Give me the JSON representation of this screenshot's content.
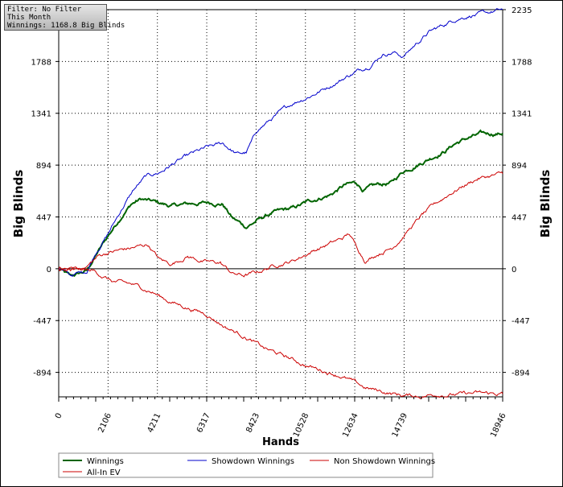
{
  "info": {
    "filter": "Filter: No Filter",
    "period": "This Month",
    "winnings": "Winnings: 1168.8 Big Blinds"
  },
  "chart_data": {
    "type": "line",
    "xlabel": "Hands",
    "ylabel": "Big Blinds",
    "xlim": [
      0,
      18946
    ],
    "ylim": [
      -1105,
      2235
    ],
    "x_ticks": [
      "0",
      "2106",
      "4211",
      "6317",
      "8423",
      "10528",
      "12634",
      "14739",
      "18946"
    ],
    "y_ticks": [
      "2235",
      "1788",
      "1341",
      "894",
      "447",
      "0",
      "-447",
      "-894"
    ],
    "grid": true,
    "legend_position": "bottom",
    "series": [
      {
        "name": "Winnings",
        "color": "#006400",
        "points": [
          [
            0,
            0
          ],
          [
            500,
            -70
          ],
          [
            1200,
            -20
          ],
          [
            1600,
            120
          ],
          [
            2100,
            280
          ],
          [
            2700,
            460
          ],
          [
            3100,
            560
          ],
          [
            3500,
            600
          ],
          [
            4200,
            570
          ],
          [
            4800,
            540
          ],
          [
            5600,
            560
          ],
          [
            6400,
            570
          ],
          [
            7000,
            560
          ],
          [
            7400,
            440
          ],
          [
            8000,
            360
          ],
          [
            8500,
            420
          ],
          [
            9100,
            480
          ],
          [
            10000,
            520
          ],
          [
            10800,
            590
          ],
          [
            11600,
            640
          ],
          [
            12200,
            720
          ],
          [
            12700,
            740
          ],
          [
            13000,
            680
          ],
          [
            13600,
            720
          ],
          [
            14200,
            740
          ],
          [
            14700,
            840
          ],
          [
            15300,
            900
          ],
          [
            16000,
            970
          ],
          [
            16500,
            1020
          ],
          [
            16900,
            1080
          ],
          [
            17500,
            1130
          ],
          [
            18000,
            1160
          ],
          [
            18946,
            1168.8
          ]
        ]
      },
      {
        "name": "Showdown Winnings",
        "color": "#0000cc",
        "points": [
          [
            0,
            0
          ],
          [
            500,
            -60
          ],
          [
            1200,
            -20
          ],
          [
            1600,
            150
          ],
          [
            2100,
            300
          ],
          [
            2700,
            520
          ],
          [
            3200,
            680
          ],
          [
            3700,
            790
          ],
          [
            4300,
            830
          ],
          [
            5000,
            920
          ],
          [
            5700,
            990
          ],
          [
            6300,
            1040
          ],
          [
            7000,
            1080
          ],
          [
            7600,
            990
          ],
          [
            8000,
            1000
          ],
          [
            8500,
            1200
          ],
          [
            9200,
            1310
          ],
          [
            10000,
            1430
          ],
          [
            10800,
            1500
          ],
          [
            11600,
            1580
          ],
          [
            12300,
            1660
          ],
          [
            12900,
            1720
          ],
          [
            13300,
            1760
          ],
          [
            13800,
            1850
          ],
          [
            14300,
            1870
          ],
          [
            14700,
            1830
          ],
          [
            15200,
            1930
          ],
          [
            15800,
            2040
          ],
          [
            16400,
            2100
          ],
          [
            17000,
            2160
          ],
          [
            17600,
            2190
          ],
          [
            18200,
            2200
          ],
          [
            18946,
            2235
          ]
        ]
      },
      {
        "name": "Non Showdown Winnings",
        "color": "#cc0000",
        "points": [
          [
            0,
            0
          ],
          [
            500,
            -20
          ],
          [
            1200,
            20
          ],
          [
            1700,
            110
          ],
          [
            2100,
            140
          ],
          [
            2600,
            160
          ],
          [
            3200,
            180
          ],
          [
            3800,
            210
          ],
          [
            4300,
            80
          ],
          [
            4800,
            40
          ],
          [
            5500,
            110
          ],
          [
            6200,
            60
          ],
          [
            6900,
            50
          ],
          [
            7400,
            -40
          ],
          [
            7900,
            -60
          ],
          [
            8500,
            -30
          ],
          [
            9200,
            30
          ],
          [
            10000,
            70
          ],
          [
            10800,
            150
          ],
          [
            11600,
            220
          ],
          [
            12100,
            260
          ],
          [
            12400,
            300
          ],
          [
            12700,
            190
          ],
          [
            13100,
            70
          ],
          [
            13600,
            130
          ],
          [
            14200,
            180
          ],
          [
            14600,
            260
          ],
          [
            15000,
            350
          ],
          [
            15500,
            460
          ],
          [
            16100,
            560
          ],
          [
            16700,
            650
          ],
          [
            17300,
            720
          ],
          [
            17900,
            780
          ],
          [
            18946,
            820
          ]
        ]
      },
      {
        "name": "All-In EV",
        "color": "#cc0000",
        "points": [
          [
            0,
            0
          ],
          [
            800,
            -10
          ],
          [
            1500,
            -20
          ],
          [
            2300,
            -110
          ],
          [
            3200,
            -140
          ],
          [
            4000,
            -200
          ],
          [
            4600,
            -270
          ],
          [
            5400,
            -330
          ],
          [
            6300,
            -390
          ],
          [
            7100,
            -500
          ],
          [
            7900,
            -580
          ],
          [
            8800,
            -690
          ],
          [
            9700,
            -760
          ],
          [
            10500,
            -830
          ],
          [
            11300,
            -880
          ],
          [
            12000,
            -920
          ],
          [
            12600,
            -980
          ],
          [
            13100,
            -1030
          ],
          [
            13800,
            -1060
          ],
          [
            14600,
            -1090
          ],
          [
            15400,
            -1100
          ],
          [
            16200,
            -1080
          ],
          [
            17000,
            -1085
          ],
          [
            17800,
            -1075
          ],
          [
            18946,
            -1080
          ]
        ]
      }
    ]
  }
}
